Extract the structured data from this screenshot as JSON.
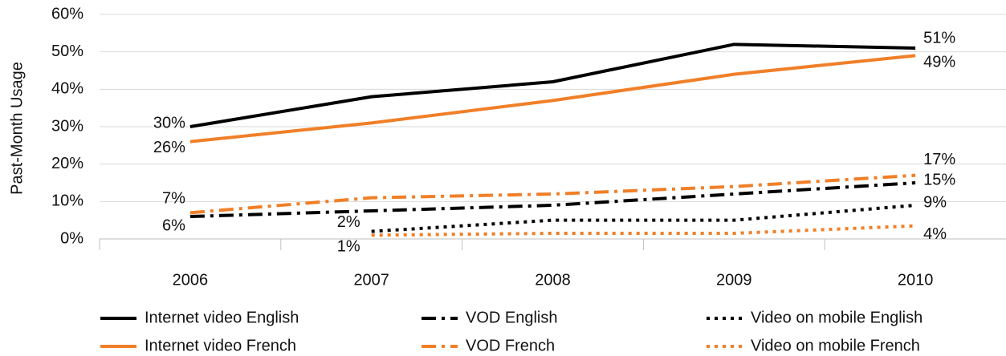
{
  "chart_data": {
    "type": "line",
    "y_label": "Past-Month Usage",
    "categories": [
      "2006",
      "2007",
      "2008",
      "2009",
      "2010"
    ],
    "ylim": [
      0,
      60
    ],
    "yticks": [
      {
        "value": 0,
        "label": "0%"
      },
      {
        "value": 10,
        "label": "10%"
      },
      {
        "value": 20,
        "label": "20%"
      },
      {
        "value": 30,
        "label": "30%"
      },
      {
        "value": 40,
        "label": "40%"
      },
      {
        "value": 50,
        "label": "50%"
      },
      {
        "value": 60,
        "label": "60%"
      }
    ],
    "grid": true,
    "legend": "bottom",
    "series": [
      {
        "name": "Internet video English",
        "color": "#000000",
        "dash": "solid",
        "values": [
          30,
          38,
          42,
          52,
          51
        ],
        "value_labels": [
          "30%",
          null,
          null,
          null,
          "51%"
        ]
      },
      {
        "name": "Internet video French",
        "color": "#f07f28",
        "dash": "solid",
        "values": [
          26,
          31,
          37,
          44,
          49
        ],
        "value_labels": [
          "26%",
          null,
          null,
          null,
          "49%"
        ]
      },
      {
        "name": "VOD English",
        "color": "#000000",
        "dash": "dashdot",
        "values": [
          6,
          7.5,
          9,
          12,
          15
        ],
        "value_labels": [
          "6%",
          null,
          null,
          null,
          "15%"
        ]
      },
      {
        "name": "VOD French",
        "color": "#f07f28",
        "dash": "dashdot",
        "values": [
          7,
          11,
          12,
          14,
          17
        ],
        "value_labels": [
          "7%",
          null,
          null,
          null,
          "17%"
        ]
      },
      {
        "name": "Video on mobile English",
        "color": "#000000",
        "dash": "dot",
        "values": [
          null,
          2,
          5,
          5,
          9
        ],
        "value_labels": [
          null,
          "2%",
          null,
          null,
          "9%"
        ]
      },
      {
        "name": "Video on mobile French",
        "color": "#f07f28",
        "dash": "dot",
        "values": [
          null,
          1,
          1.5,
          1.5,
          3.5
        ],
        "value_labels": [
          null,
          "1%",
          null,
          null,
          "4%"
        ]
      }
    ]
  }
}
